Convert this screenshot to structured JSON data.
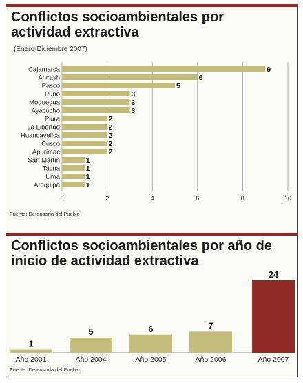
{
  "chart_data": [
    {
      "type": "bar",
      "orientation": "horizontal",
      "title": "Conflictos socioambientales por actividad extractiva",
      "subtitle": "(Enero-Diciembre 2007)",
      "categories": [
        "Cajamarca",
        "Ancash",
        "Pasco",
        "Puno",
        "Moquegua",
        "Ayacucho",
        "Piura",
        "La Libertad",
        "Huancavelica",
        "Cusco",
        "Apurimac",
        "San Martín",
        "Tacna",
        "Lima",
        "Arequipa"
      ],
      "values": [
        9,
        6,
        5,
        3,
        3,
        3,
        2,
        2,
        2,
        2,
        2,
        1,
        1,
        1,
        1
      ],
      "xticks": [
        "0",
        "2",
        "4",
        "6",
        "8",
        "10"
      ],
      "xlim": [
        0,
        10
      ],
      "grid": true,
      "bar_color": "#c4bc7a",
      "source": "Fuente: Defensoría del Pueblo"
    },
    {
      "type": "bar",
      "title": "Conflictos socioambientales por año de inicio de actividad extractiva",
      "categories": [
        "Año 2001",
        "Año 2004",
        "Año 2005",
        "Año 2006",
        "Año 2007"
      ],
      "values": [
        1,
        5,
        6,
        7,
        24
      ],
      "bar_color": "#c4bc7a",
      "highlight_color": "#8f2a25",
      "source": "Fuente: Defensoría del Pueblo"
    }
  ]
}
